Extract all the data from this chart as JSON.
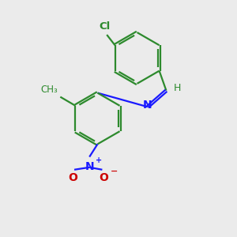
{
  "bg_color": "#ebebeb",
  "bond_color": "#2d8a2d",
  "n_color": "#1a1aff",
  "o_color": "#cc0000",
  "cl_color": "#2d8a2d",
  "line_width": 1.6,
  "figsize": [
    3.0,
    3.0
  ],
  "dpi": 100,
  "xlim": [
    0,
    10
  ],
  "ylim": [
    0,
    10
  ]
}
